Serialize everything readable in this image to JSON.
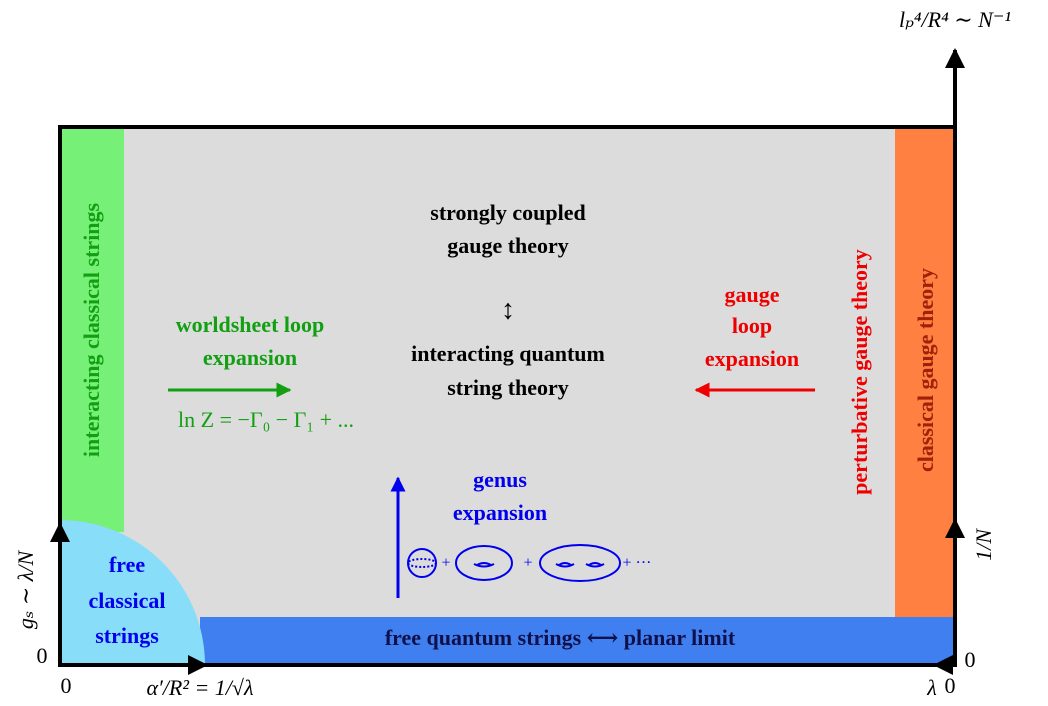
{
  "axes": {
    "top_right": "lₚ⁴/R⁴ ∼ N⁻¹",
    "left": "gₛ ∼ λ/N",
    "bottom_left": "α′/R² = 1/√λ",
    "bottom_right": "λ",
    "right": "1/N",
    "zeros": [
      "0",
      "0",
      "0",
      "0"
    ]
  },
  "strips": {
    "left": "interacting classical strings",
    "right_outer": "classical gauge theory",
    "right_inner": "perturbative gauge theory",
    "bottom": "free quantum strings ⟷ planar limit",
    "corner": [
      "free",
      "classical",
      "strings"
    ]
  },
  "center": {
    "top": [
      "strongly coupled",
      "gauge theory"
    ],
    "arrow": "↕",
    "bottom": [
      "interacting quantum",
      "string theory"
    ]
  },
  "worldsheet": {
    "label": [
      "worldsheet loop",
      "expansion"
    ],
    "formula": "ln Z = −Γ₀ − Γ₁ + ..."
  },
  "gauge_loop": {
    "label": [
      "gauge",
      "loop",
      "expansion"
    ]
  },
  "genus": {
    "label": [
      "genus",
      "expansion"
    ],
    "terms": [
      "+",
      "+",
      "+ ···"
    ]
  }
}
